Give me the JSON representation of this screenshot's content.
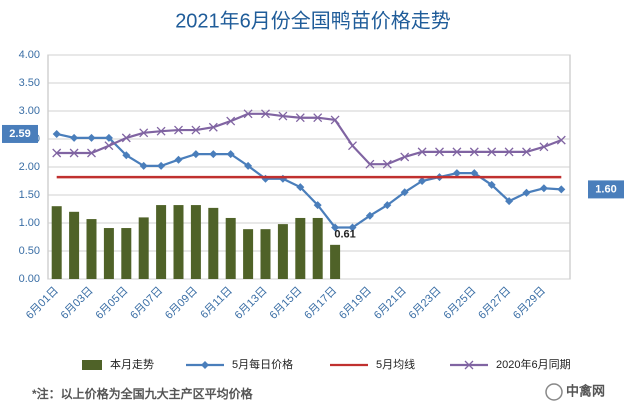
{
  "chart_data": {
    "type": "combo",
    "title": "2021年6月份全国鸭苗价格走势",
    "categories": [
      "6月01日",
      null,
      "6月03日",
      null,
      "6月05日",
      null,
      "6月07日",
      null,
      "6月09日",
      null,
      "6月11日",
      null,
      "6月13日",
      null,
      "6月15日",
      null,
      "6月17日",
      null,
      "6月19日",
      null,
      "6月21日",
      null,
      "6月23日",
      null,
      "6月25日",
      null,
      "6月27日",
      null,
      "6月29日",
      null
    ],
    "series": [
      {
        "name": "本月走势",
        "type": "bar",
        "color": "#4f6228",
        "values": [
          1.3,
          1.2,
          1.07,
          0.91,
          0.91,
          1.1,
          1.32,
          1.32,
          1.32,
          1.27,
          1.09,
          0.89,
          0.89,
          0.98,
          1.09,
          1.09,
          0.61,
          null,
          null,
          null,
          null,
          null,
          null,
          null,
          null,
          null,
          null,
          null,
          null,
          null
        ],
        "value_labels": [
          null,
          null,
          null,
          null,
          null,
          null,
          null,
          null,
          null,
          null,
          null,
          null,
          null,
          null,
          null,
          null,
          "0.61",
          null,
          null,
          null,
          null,
          null,
          null,
          null,
          null,
          null,
          null,
          null,
          null,
          null
        ]
      },
      {
        "name": "5月每日价格",
        "type": "line",
        "marker": "diamond",
        "color": "#4a7ebb",
        "values": [
          2.59,
          2.52,
          2.52,
          2.52,
          2.21,
          2.02,
          2.02,
          2.13,
          2.23,
          2.23,
          2.23,
          2.02,
          1.79,
          1.79,
          1.64,
          1.32,
          0.92,
          0.92,
          1.13,
          1.32,
          1.55,
          1.75,
          1.82,
          1.89,
          1.89,
          1.68,
          1.39,
          1.54,
          1.62,
          1.6
        ],
        "value_labels": [
          "2.59",
          null,
          null,
          null,
          null,
          null,
          null,
          null,
          null,
          null,
          null,
          null,
          null,
          null,
          null,
          null,
          null,
          null,
          null,
          null,
          null,
          null,
          null,
          null,
          null,
          null,
          null,
          null,
          null,
          "1.60"
        ]
      },
      {
        "name": "5月均线",
        "type": "line",
        "marker": "none",
        "color": "#c0302f",
        "values": [
          1.82,
          1.82,
          1.82,
          1.82,
          1.82,
          1.82,
          1.82,
          1.82,
          1.82,
          1.82,
          1.82,
          1.82,
          1.82,
          1.82,
          1.82,
          1.82,
          1.82,
          1.82,
          1.82,
          1.82,
          1.82,
          1.82,
          1.82,
          1.82,
          1.82,
          1.82,
          1.82,
          1.82,
          1.82,
          1.82
        ]
      },
      {
        "name": "2020年6月同期",
        "type": "line",
        "marker": "x",
        "color": "#8064a2",
        "values": [
          2.25,
          2.25,
          2.25,
          2.38,
          2.52,
          2.61,
          2.64,
          2.66,
          2.66,
          2.71,
          2.82,
          2.95,
          2.95,
          2.91,
          2.88,
          2.88,
          2.84,
          2.38,
          2.05,
          2.05,
          2.18,
          2.27,
          2.27,
          2.27,
          2.27,
          2.27,
          2.27,
          2.27,
          2.36,
          2.48
        ]
      }
    ],
    "ylim": [
      0,
      4
    ],
    "yticks": [
      {
        "value": 0,
        "label": "0.00"
      },
      {
        "value": 0.5,
        "label": "0.50"
      },
      {
        "value": 1,
        "label": "1.00"
      },
      {
        "value": 1.5,
        "label": "1.50"
      },
      {
        "value": 2,
        "label": "2.00"
      },
      {
        "value": 2.5,
        "label": "2.50"
      },
      {
        "value": 3,
        "label": "3.00"
      },
      {
        "value": 3.5,
        "label": "3.50"
      },
      {
        "value": 4,
        "label": "4.00"
      }
    ],
    "grid": true,
    "legend": "bottom",
    "note": "*注：以上价格为全国九大主产区平均价格",
    "logo": "中禽网"
  }
}
